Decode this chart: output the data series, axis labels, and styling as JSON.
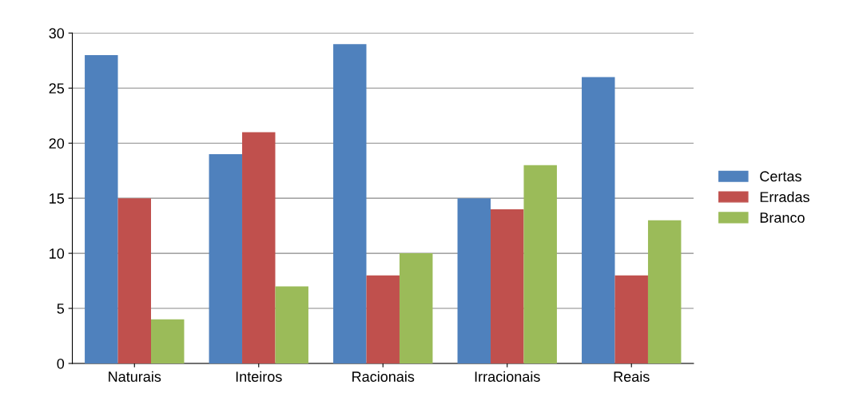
{
  "chart_data": {
    "type": "bar",
    "categories": [
      "Naturais",
      "Inteiros",
      "Racionais",
      "Irracionais",
      "Reais"
    ],
    "series": [
      {
        "name": "Certas",
        "color": "#4f81bd",
        "values": [
          28,
          19,
          29,
          15,
          26
        ]
      },
      {
        "name": "Erradas",
        "color": "#c0504d",
        "values": [
          15,
          21,
          8,
          14,
          8
        ]
      },
      {
        "name": "Branco",
        "color": "#9bbb59",
        "values": [
          4,
          7,
          10,
          18,
          13
        ]
      }
    ],
    "ylim": [
      0,
      30
    ],
    "yticks": [
      0,
      5,
      10,
      15,
      20,
      25,
      30
    ],
    "grid": "y",
    "legend": "right"
  }
}
